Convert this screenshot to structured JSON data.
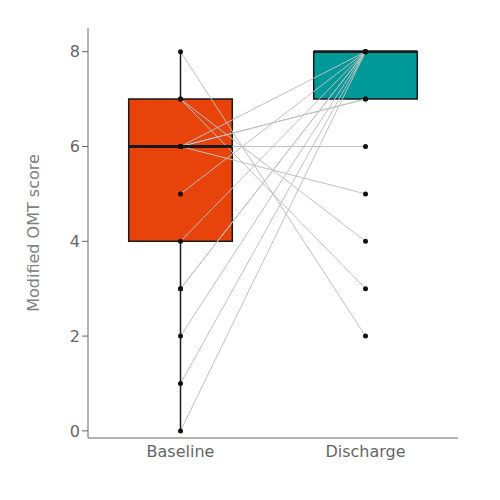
{
  "chart_data": {
    "type": "box",
    "categories": [
      "Baseline",
      "Discharge"
    ],
    "ylabel": "Modified OMT score",
    "ylim": [
      -0.15,
      8.5
    ],
    "yticks": [
      0,
      2,
      4,
      6,
      8
    ],
    "grid": false,
    "boxes": [
      {
        "q1": 4,
        "median": 6,
        "q3": 7,
        "whisker_low": 0,
        "whisker_high": 8,
        "color": "#E8430A"
      },
      {
        "q1": 7,
        "median": 8,
        "q3": 8,
        "whisker_low": 7,
        "whisker_high": 8,
        "color": "#009999"
      }
    ],
    "series": [
      {
        "type": "line",
        "color": "#C0C0C0",
        "marker": "circle",
        "values": [
          [
            0,
            8
          ],
          [
            1,
            8
          ],
          [
            2,
            8
          ],
          [
            3,
            8
          ],
          [
            3,
            8
          ],
          [
            4,
            8
          ],
          [
            5,
            8
          ],
          [
            6,
            8
          ],
          [
            6,
            7
          ],
          [
            6,
            7
          ],
          [
            6,
            6
          ],
          [
            6,
            5
          ],
          [
            7,
            4
          ],
          [
            7,
            3
          ],
          [
            8,
            2
          ]
        ]
      }
    ]
  }
}
